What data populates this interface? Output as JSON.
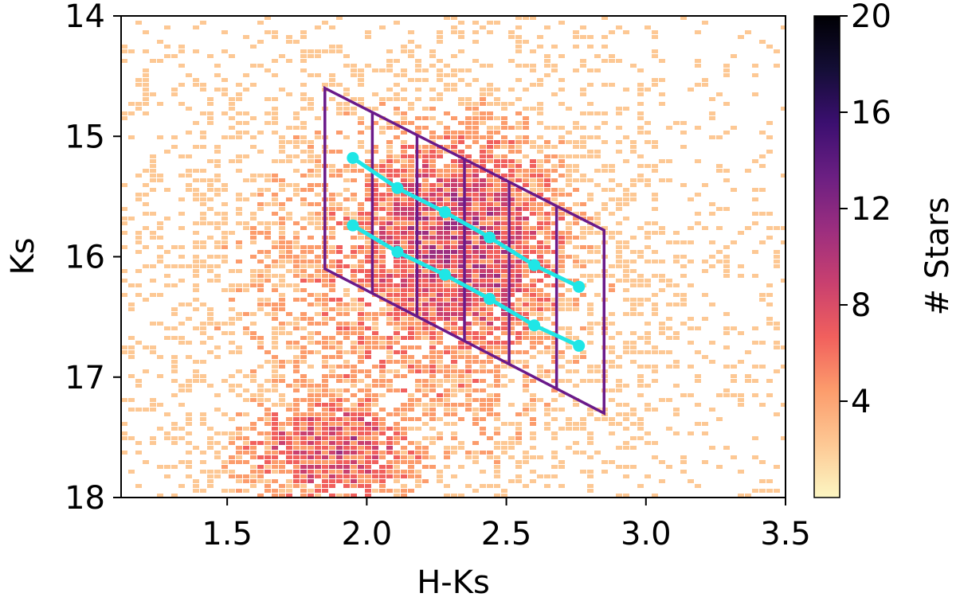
{
  "chart_data": {
    "type": "heatmap",
    "title": "",
    "xlabel": "H-Ks",
    "ylabel": "Ks",
    "xlim": [
      1.12,
      3.5
    ],
    "ylim": [
      18,
      14
    ],
    "y_inverted": true,
    "xticks": [
      1.5,
      2.0,
      2.5,
      3.0,
      3.5
    ],
    "xtick_labels": [
      "1.5",
      "2.0",
      "2.5",
      "3.0",
      "3.5"
    ],
    "yticks": [
      14,
      15,
      16,
      17,
      18
    ],
    "ytick_labels": [
      "14",
      "15",
      "16",
      "17",
      "18"
    ],
    "colorbar": {
      "label": "# Stars",
      "range": [
        0,
        20
      ],
      "ticks": [
        4,
        8,
        12,
        16,
        20
      ],
      "tick_labels": [
        "4",
        "8",
        "12",
        "16",
        "20"
      ],
      "colormap": "magma_r",
      "colors": [
        "#fcf6c2",
        "#fdc894",
        "#fc9c6c",
        "#f1605d",
        "#c9406f",
        "#9c2e7f",
        "#6b1f82",
        "#3b0f70",
        "#140e36",
        "#000004"
      ]
    },
    "density_note": "2D histogram of star counts; main clump near H-Ks 2.3 Ks 15.8, secondary near H-Ks 1.9 Ks 17.7",
    "grid": {
      "color": "#6a1a8a",
      "corners": [
        {
          "x": 1.85,
          "y": 14.6
        },
        {
          "x": 2.85,
          "y": 15.78
        },
        {
          "x": 2.85,
          "y": 17.3
        },
        {
          "x": 1.85,
          "y": 16.1
        }
      ],
      "vertical_divisions_x": [
        2.02,
        2.18,
        2.35,
        2.51,
        2.68
      ]
    },
    "series": [
      {
        "color": "#1fe6e6",
        "x": [
          1.95,
          2.11,
          2.28,
          2.44,
          2.6,
          2.76
        ],
        "y": [
          15.18,
          15.43,
          15.63,
          15.84,
          16.07,
          16.25
        ]
      },
      {
        "color": "#1fe6e6",
        "x": [
          1.95,
          2.11,
          2.28,
          2.44,
          2.6,
          2.76
        ],
        "y": [
          15.74,
          15.96,
          16.15,
          16.35,
          16.57,
          16.74
        ]
      }
    ]
  }
}
